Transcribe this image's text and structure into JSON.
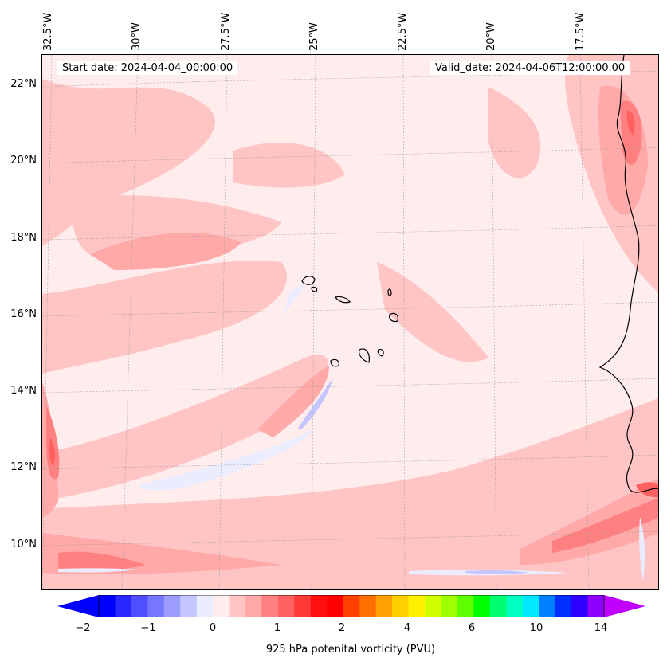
{
  "header": {
    "start_date": "Start date: 2024-04-04_00:00:00",
    "valid_date": "Valid_date: 2024-04-06T12:00:00.00"
  },
  "axes": {
    "lon_labels": [
      "32.5°W",
      "30°W",
      "27.5°W",
      "25°W",
      "22.5°W",
      "20°W",
      "17.5°W"
    ],
    "lat_labels": [
      "22°N",
      "20°N",
      "18°N",
      "16°N",
      "14°N",
      "12°N",
      "10°N"
    ]
  },
  "colorbar": {
    "label": "925 hPa potenital vorticity (PVU)",
    "tick_labels": [
      "−2",
      "−1",
      "0",
      "1",
      "2",
      "4",
      "6",
      "10",
      "14"
    ],
    "colors": [
      "#0000ff",
      "#2828ff",
      "#4f4fff",
      "#7676ff",
      "#9d9dff",
      "#c4c4ff",
      "#ececff",
      "#ffecec",
      "#ffc4c4",
      "#ffa9a9",
      "#ff8080",
      "#ff6060",
      "#ff3838",
      "#ff1010",
      "#ff0000",
      "#ff4000",
      "#ff7000",
      "#ffa000",
      "#ffd000",
      "#fff000",
      "#d0ff00",
      "#a0ff00",
      "#60ff00",
      "#00ff00",
      "#00ff70",
      "#00ffc0",
      "#00e8ff",
      "#0080ff",
      "#0030ff",
      "#3000ff",
      "#9000ff"
    ],
    "under_color": "#0000ff",
    "over_color": "#c000ff"
  }
}
